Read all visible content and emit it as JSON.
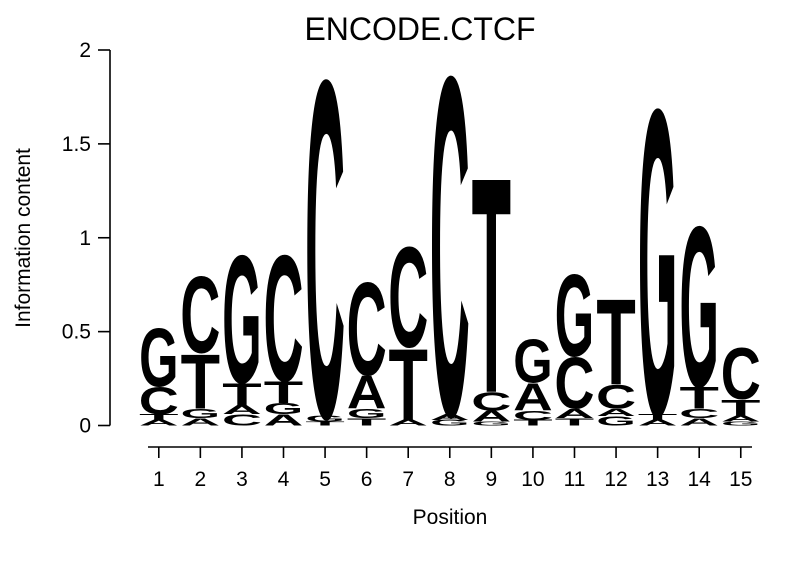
{
  "title": "ENCODE.CTCF",
  "y_axis": {
    "label": "Information content",
    "tick_labels": [
      "0",
      "0.5",
      "1",
      "1.5",
      "2"
    ],
    "tick_values": [
      0,
      0.5,
      1,
      1.5,
      2
    ],
    "range": [
      0,
      2
    ]
  },
  "x_axis": {
    "label": "Position",
    "tick_labels": [
      "1",
      "2",
      "3",
      "4",
      "5",
      "6",
      "7",
      "8",
      "9",
      "10",
      "11",
      "12",
      "13",
      "14",
      "15"
    ]
  },
  "base_colors": {
    "A": "#00CC00",
    "C": "#0000EE",
    "G": "#FFA500",
    "T": "#EE0000"
  },
  "chart_data": {
    "type": "bar",
    "subtype": "sequence_logo",
    "title": "ENCODE.CTCF",
    "xlabel": "Position",
    "ylabel": "Information content",
    "ylim": [
      0,
      2
    ],
    "x": [
      1,
      2,
      3,
      4,
      5,
      6,
      7,
      8,
      9,
      10,
      11,
      12,
      13,
      14,
      15
    ],
    "stack_order": "bottom_to_top",
    "positions": [
      {
        "position": 1,
        "stack": [
          {
            "base": "A",
            "bits": 0.03
          },
          {
            "base": "T",
            "bits": 0.03
          },
          {
            "base": "C",
            "bits": 0.15
          },
          {
            "base": "G",
            "bits": 0.32
          }
        ],
        "total": 0.53
      },
      {
        "position": 2,
        "stack": [
          {
            "base": "A",
            "bits": 0.04
          },
          {
            "base": "G",
            "bits": 0.05
          },
          {
            "base": "T",
            "bits": 0.3
          },
          {
            "base": "C",
            "bits": 0.42
          }
        ],
        "total": 0.81
      },
      {
        "position": 3,
        "stack": [
          {
            "base": "C",
            "bits": 0.06
          },
          {
            "base": "A",
            "bits": 0.05
          },
          {
            "base": "T",
            "bits": 0.12
          },
          {
            "base": "G",
            "bits": 0.7
          }
        ],
        "total": 0.93
      },
      {
        "position": 4,
        "stack": [
          {
            "base": "A",
            "bits": 0.06
          },
          {
            "base": "G",
            "bits": 0.06
          },
          {
            "base": "T",
            "bits": 0.12
          },
          {
            "base": "C",
            "bits": 0.69
          }
        ],
        "total": 0.93
      },
      {
        "position": 5,
        "stack": [
          {
            "base": "T",
            "bits": 0.02
          },
          {
            "base": "G",
            "bits": 0.03
          },
          {
            "base": "C",
            "bits": 1.85
          }
        ],
        "total": 1.9
      },
      {
        "position": 6,
        "stack": [
          {
            "base": "T",
            "bits": 0.04
          },
          {
            "base": "G",
            "bits": 0.05
          },
          {
            "base": "A",
            "bits": 0.18
          },
          {
            "base": "C",
            "bits": 0.51
          }
        ],
        "total": 0.78
      },
      {
        "position": 7,
        "stack": [
          {
            "base": "A",
            "bits": 0.03
          },
          {
            "base": "T",
            "bits": 0.39
          },
          {
            "base": "C",
            "bits": 0.55
          }
        ],
        "total": 0.97
      },
      {
        "position": 8,
        "stack": [
          {
            "base": "G",
            "bits": 0.03
          },
          {
            "base": "A",
            "bits": 0.03
          },
          {
            "base": "C",
            "bits": 1.86
          }
        ],
        "total": 1.92
      },
      {
        "position": 9,
        "stack": [
          {
            "base": "G",
            "bits": 0.02
          },
          {
            "base": "A",
            "bits": 0.06
          },
          {
            "base": "C",
            "bits": 0.1
          },
          {
            "base": "T",
            "bits": 1.18
          }
        ],
        "total": 1.36
      },
      {
        "position": 10,
        "stack": [
          {
            "base": "T",
            "bits": 0.03
          },
          {
            "base": "C",
            "bits": 0.05
          },
          {
            "base": "A",
            "bits": 0.15
          },
          {
            "base": "G",
            "bits": 0.24
          }
        ],
        "total": 0.47
      },
      {
        "position": 11,
        "stack": [
          {
            "base": "T",
            "bits": 0.04
          },
          {
            "base": "A",
            "bits": 0.05
          },
          {
            "base": "C",
            "bits": 0.28
          },
          {
            "base": "G",
            "bits": 0.45
          }
        ],
        "total": 0.82
      },
      {
        "position": 12,
        "stack": [
          {
            "base": "G",
            "bits": 0.05
          },
          {
            "base": "A",
            "bits": 0.04
          },
          {
            "base": "C",
            "bits": 0.13
          },
          {
            "base": "T",
            "bits": 0.47
          }
        ],
        "total": 0.69
      },
      {
        "position": 13,
        "stack": [
          {
            "base": "A",
            "bits": 0.03
          },
          {
            "base": "T",
            "bits": 0.03
          },
          {
            "base": "G",
            "bits": 1.68
          }
        ],
        "total": 1.74
      },
      {
        "position": 14,
        "stack": [
          {
            "base": "A",
            "bits": 0.04
          },
          {
            "base": "C",
            "bits": 0.05
          },
          {
            "base": "T",
            "bits": 0.12
          },
          {
            "base": "G",
            "bits": 0.88
          }
        ],
        "total": 1.09
      },
      {
        "position": 15,
        "stack": [
          {
            "base": "G",
            "bits": 0.02
          },
          {
            "base": "A",
            "bits": 0.03
          },
          {
            "base": "T",
            "bits": 0.09
          },
          {
            "base": "C",
            "bits": 0.28
          }
        ],
        "total": 0.42
      }
    ]
  }
}
